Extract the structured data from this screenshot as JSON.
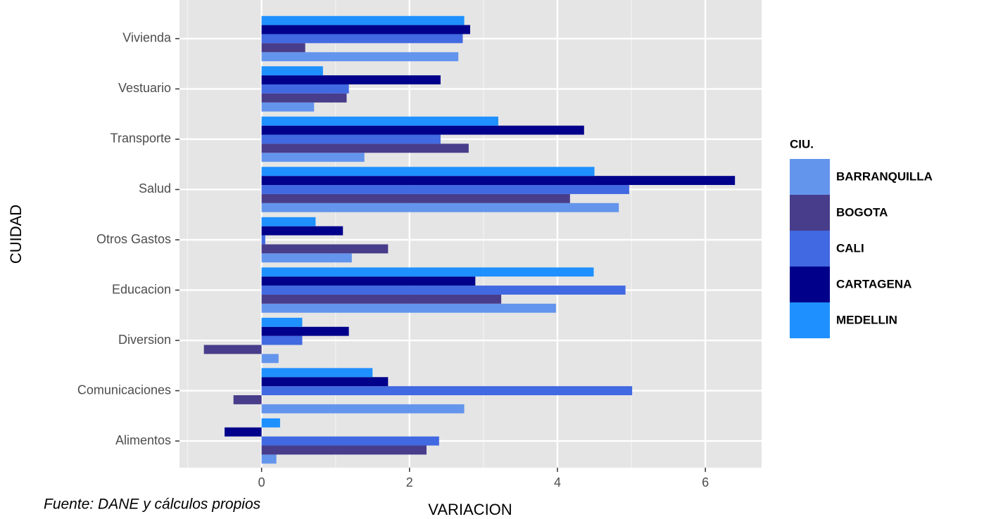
{
  "chart_data": {
    "type": "hbar",
    "x_label": "VARIACION",
    "y_label": "CUIDAD",
    "legend_title": "CIU.",
    "source": "Fuente: DANE y cálculos propios",
    "categories": [
      "Vivienda",
      "Vestuario",
      "Transporte",
      "Salud",
      "Otros Gastos",
      "Educacion",
      "Diversion",
      "Comunicaciones",
      "Alimentos"
    ],
    "series": [
      {
        "name": "BARRANQUILLA",
        "color": "#6495ED",
        "values": [
          2.66,
          0.71,
          1.39,
          4.83,
          1.22,
          3.98,
          0.23,
          2.74,
          0.2
        ]
      },
      {
        "name": "BOGOTA",
        "color": "#483D8B",
        "values": [
          0.59,
          1.15,
          2.8,
          4.17,
          1.71,
          3.24,
          -0.78,
          -0.38,
          2.23
        ]
      },
      {
        "name": "CALI",
        "color": "#4169E1",
        "values": [
          2.72,
          1.18,
          2.42,
          4.97,
          0.05,
          4.92,
          0.55,
          5.01,
          2.4
        ]
      },
      {
        "name": "CARTAGENA",
        "color": "#00008B",
        "values": [
          2.82,
          2.42,
          4.36,
          6.4,
          1.1,
          2.89,
          1.18,
          1.71,
          -0.5
        ]
      },
      {
        "name": "MEDELLIN",
        "color": "#1E90FF",
        "values": [
          2.74,
          0.83,
          3.2,
          4.5,
          0.73,
          4.49,
          0.55,
          1.5,
          0.25
        ]
      }
    ],
    "xlim": [
      -1.11,
      6.76
    ],
    "xticks": [
      0,
      2,
      4,
      6
    ],
    "grid": true,
    "legend": "right"
  }
}
